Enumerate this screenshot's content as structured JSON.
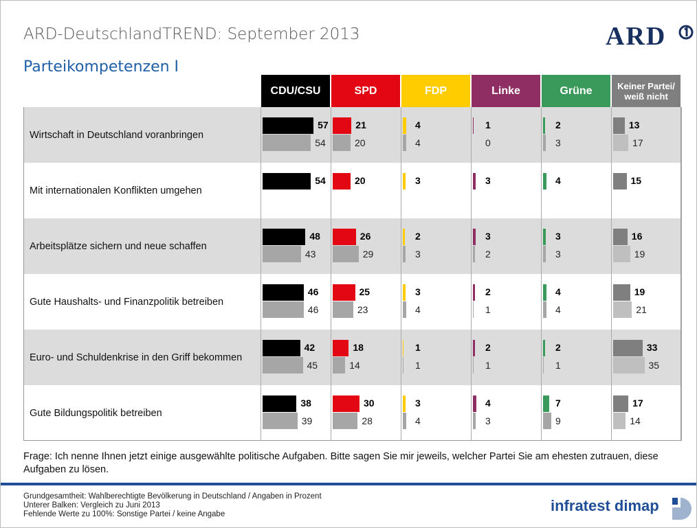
{
  "header": {
    "title": "ARD-DeutschlandTREND: September 2013",
    "subtitle": "Parteikompetenzen I",
    "logo": "ARD"
  },
  "chart_data": {
    "type": "bar_table",
    "categories": [
      "Wirtschaft in Deutschland voranbringen",
      "Mit internationalen Konflikten umgehen",
      "Arbeitsplätze sichern und neue schaffen",
      "Gute Haushalts- und Finanzpolitik betreiben",
      "Euro- und Schuldenkrise in den Griff bekommen",
      "Gute Bildungspolitik betreiben"
    ],
    "series": [
      {
        "name": "CDU/CSU",
        "color": "#000000",
        "compare_color": "#a6a6a6",
        "values": [
          57,
          54,
          48,
          46,
          42,
          38
        ],
        "compare_values": [
          54,
          null,
          43,
          46,
          45,
          39
        ]
      },
      {
        "name": "SPD",
        "color": "#e30613",
        "compare_color": "#a6a6a6",
        "values": [
          21,
          20,
          26,
          25,
          18,
          30
        ],
        "compare_values": [
          20,
          null,
          29,
          23,
          14,
          28
        ]
      },
      {
        "name": "FDP",
        "color": "#ffcc00",
        "compare_color": "#a6a6a6",
        "values": [
          4,
          3,
          2,
          3,
          1,
          3
        ],
        "compare_values": [
          4,
          null,
          3,
          4,
          1,
          4
        ]
      },
      {
        "name": "Linke",
        "color": "#8e2e63",
        "compare_color": "#a6a6a6",
        "values": [
          1,
          3,
          3,
          2,
          2,
          4
        ],
        "compare_values": [
          0,
          null,
          2,
          1,
          1,
          3
        ]
      },
      {
        "name": "Grüne",
        "color": "#3a9a5b",
        "compare_color": "#a6a6a6",
        "values": [
          2,
          4,
          3,
          4,
          2,
          7
        ],
        "compare_values": [
          3,
          null,
          3,
          4,
          1,
          9
        ]
      },
      {
        "name": "Keiner Partei/ weiß nicht",
        "color": "#7f7f7f",
        "compare_color": "#bfbfbf",
        "values": [
          13,
          15,
          16,
          19,
          33,
          17
        ],
        "compare_values": [
          17,
          null,
          19,
          21,
          35,
          14
        ]
      }
    ]
  },
  "footer": {
    "question": "Frage: Ich nenne Ihnen jetzt einige ausgewählte politische Aufgaben. Bitte sagen Sie mir jeweils, welcher Partei Sie am ehesten zutrauen, diese Aufgaben zu lösen.",
    "notes": [
      "Grundgesamtheit: Wahlberechtigte Bevölkerung in Deutschland / Angaben in Prozent",
      "Unterer Balken: Vergleich zu Juni 2013",
      "Fehlende Werte zu 100%: Sonstige Partei / keine Angabe"
    ],
    "brand": "infratest dimap"
  }
}
